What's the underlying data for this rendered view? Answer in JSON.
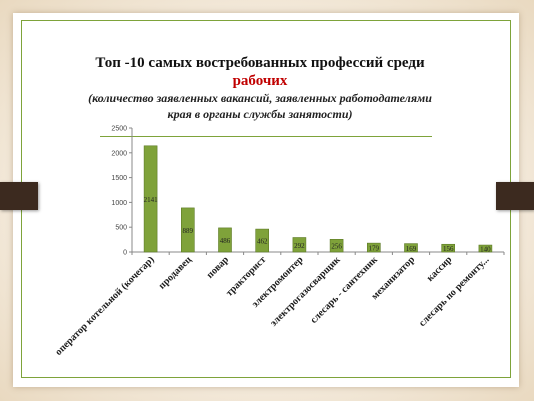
{
  "slide": {
    "title_line1": "Топ -10  самых востребованных профессий среди",
    "title_line2": "рабочих",
    "subtitle_line1": "(количество заявленных вакансий, заявленных работодателями",
    "subtitle_line2": "края в органы службы занятости)"
  },
  "colors": {
    "bar": "#7fa23a",
    "bar_border": "#5c7a25",
    "title_accent": "#c00000",
    "clip": "#3c2a1f"
  },
  "chart_data": {
    "type": "bar",
    "title": "",
    "xlabel": "",
    "ylabel": "",
    "ylim": [
      0,
      2500
    ],
    "yticks": [
      0,
      500,
      1000,
      1500,
      2000,
      2500
    ],
    "ytick_labels": [
      "0",
      "500",
      "1000",
      "1500",
      "2000",
      "2500"
    ],
    "grid": false,
    "categories": [
      "оператор котельной (кочегар)",
      "продавец",
      "повар",
      "тракторист",
      "электромонтер",
      "электрогазосварщик",
      "слесарь - сантехник",
      "механизатор",
      "кассир",
      "слесарь по ремонту..."
    ],
    "values": [
      2141,
      889,
      486,
      462,
      292,
      256,
      179,
      169,
      156,
      140
    ],
    "value_labels": [
      "2141",
      "889",
      "486",
      "462",
      "292",
      "256",
      "179",
      "169",
      "156",
      "140"
    ]
  }
}
